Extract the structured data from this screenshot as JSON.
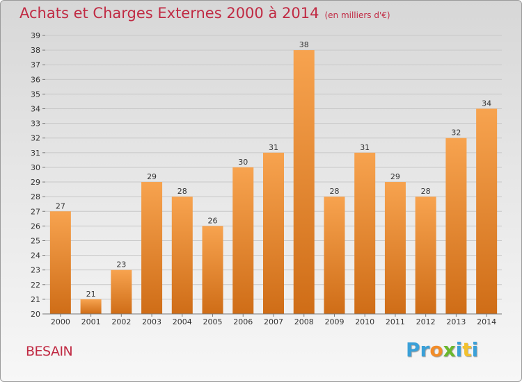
{
  "title": "Achats et Charges Externes 2000 à 2014",
  "unit": "(en milliers d'€)",
  "place": "BESAIN",
  "logo": {
    "letters": [
      "P",
      "r",
      "o",
      "x",
      "i",
      "t",
      "i"
    ],
    "colors": [
      "#3aa0d8",
      "#3aa0d8",
      "#f28c28",
      "#6ab82e",
      "#3aa0d8",
      "#f2c12e",
      "#3aa0d8"
    ]
  },
  "colors": {
    "bar_light": "#f7a34f",
    "bar_dark": "#cf6d17",
    "title": "#c02a43",
    "grid": "#c8c8c8"
  },
  "chart_data": {
    "type": "bar",
    "categories": [
      "2000",
      "2001",
      "2002",
      "2003",
      "2004",
      "2005",
      "2006",
      "2007",
      "2008",
      "2009",
      "2010",
      "2011",
      "2012",
      "2013",
      "2014"
    ],
    "values": [
      27,
      21,
      23,
      29,
      28,
      26,
      30,
      31,
      38,
      28,
      31,
      29,
      28,
      32,
      34
    ],
    "ylim": [
      20,
      39
    ],
    "yticks": [
      20,
      21,
      22,
      23,
      24,
      25,
      26,
      27,
      28,
      29,
      30,
      31,
      32,
      33,
      34,
      35,
      36,
      37,
      38,
      39
    ],
    "grid": true,
    "legend": "none"
  }
}
